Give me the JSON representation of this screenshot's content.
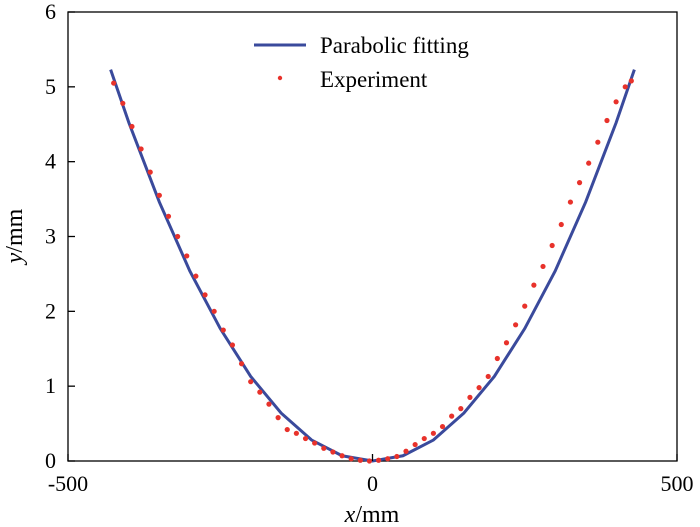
{
  "chart_data": {
    "type": "scatter",
    "title": "",
    "xlabel_var": "x",
    "xlabel_unit": "/mm",
    "ylabel_var": "y",
    "ylabel_unit": "/mm",
    "xlim": [
      -500,
      500
    ],
    "ylim": [
      0,
      6
    ],
    "xticks": [
      -500,
      0,
      500
    ],
    "xtick_labels": [
      "-500",
      "0",
      "500"
    ],
    "yticks": [
      0,
      1,
      2,
      3,
      4,
      5,
      6
    ],
    "ytick_labels": [
      "0",
      "1",
      "2",
      "3",
      "4",
      "5",
      "6"
    ],
    "grid": false,
    "legend_position": "top-center",
    "series": [
      {
        "name": "Parabolic fitting",
        "kind": "line",
        "color": "#3a4a9c",
        "x": [
          -430,
          -400,
          -350,
          -300,
          -250,
          -200,
          -150,
          -100,
          -50,
          0,
          50,
          100,
          150,
          200,
          250,
          300,
          350,
          400,
          430
        ],
        "y": [
          5.23,
          4.52,
          3.46,
          2.54,
          1.77,
          1.13,
          0.64,
          0.28,
          0.07,
          0.0,
          0.07,
          0.28,
          0.64,
          1.13,
          1.77,
          2.54,
          3.46,
          4.52,
          5.23
        ]
      },
      {
        "name": "Experiment",
        "kind": "scatter",
        "color": "#e8322b",
        "x": [
          -425,
          -410,
          -395,
          -380,
          -365,
          -350,
          -335,
          -320,
          -305,
          -290,
          -275,
          -260,
          -245,
          -230,
          -215,
          -200,
          -185,
          -170,
          -155,
          -140,
          -125,
          -110,
          -95,
          -80,
          -65,
          -50,
          -35,
          -20,
          -5,
          10,
          25,
          40,
          55,
          70,
          85,
          100,
          115,
          130,
          145,
          160,
          175,
          190,
          205,
          220,
          235,
          250,
          265,
          280,
          295,
          310,
          325,
          340,
          355,
          370,
          385,
          400,
          415,
          425
        ],
        "y": [
          5.05,
          4.78,
          4.47,
          4.17,
          3.86,
          3.55,
          3.27,
          3.0,
          2.74,
          2.47,
          2.22,
          2.0,
          1.75,
          1.55,
          1.3,
          1.06,
          0.92,
          0.76,
          0.58,
          0.42,
          0.37,
          0.3,
          0.24,
          0.17,
          0.12,
          0.07,
          0.03,
          0.01,
          0.0,
          0.01,
          0.03,
          0.06,
          0.13,
          0.22,
          0.3,
          0.37,
          0.46,
          0.6,
          0.7,
          0.85,
          0.98,
          1.13,
          1.37,
          1.58,
          1.82,
          2.07,
          2.35,
          2.6,
          2.88,
          3.16,
          3.46,
          3.72,
          3.98,
          4.26,
          4.55,
          4.8,
          5.0,
          5.08
        ]
      }
    ]
  }
}
